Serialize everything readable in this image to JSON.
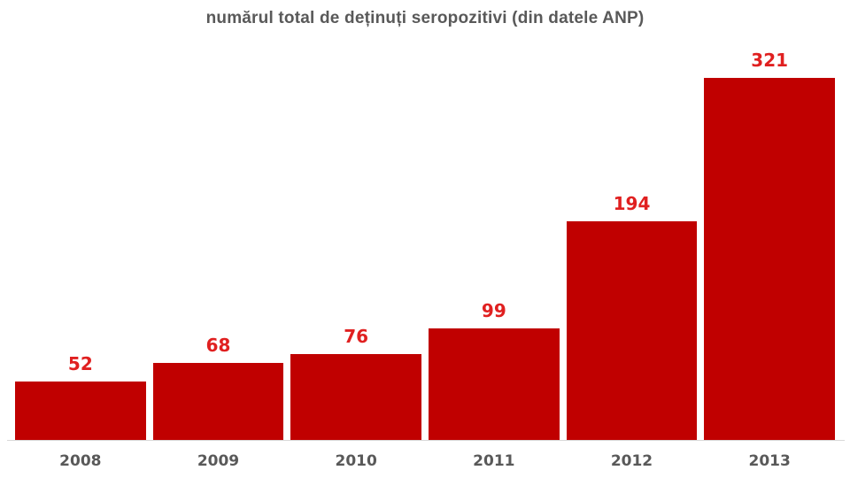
{
  "chart_data": {
    "type": "bar",
    "title": "numărul total de deținuți seropozitivi (din datele ANP)",
    "categories": [
      "2008",
      "2009",
      "2010",
      "2011",
      "2012",
      "2013"
    ],
    "values": [
      52,
      68,
      76,
      99,
      194,
      321
    ],
    "xlabel": "",
    "ylabel": "",
    "ylim": [
      0,
      350
    ],
    "grid": false,
    "legend": "none",
    "value_labels_shown": true,
    "colors": {
      "bar": "#C00000",
      "value_label": "#E02020",
      "title": "#595959",
      "tick_label": "#595959",
      "axis_line": "#D9D9D9",
      "background": "#FFFFFF"
    }
  }
}
